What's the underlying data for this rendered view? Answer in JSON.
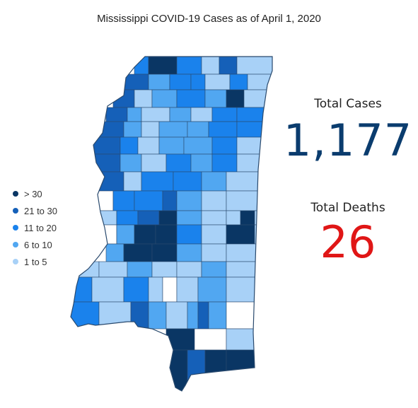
{
  "title": "Mississippi COVID-19 Cases as of April 1, 2020",
  "legend": [
    {
      "label": "> 30",
      "color": "#0a3664"
    },
    {
      "label": "21 to 30",
      "color": "#1560b8"
    },
    {
      "label": "11 to 20",
      "color": "#1a82ec"
    },
    {
      "label": "6 to 10",
      "color": "#51a7f1"
    },
    {
      "label": "1 to 5",
      "color": "#a8d1f7"
    }
  ],
  "stats": {
    "cases_label": "Total Cases",
    "cases_value": "1,177",
    "deaths_label": "Total Deaths",
    "deaths_value": "26"
  },
  "colors": {
    "none": "#ffffff",
    "border": "#2a4a6e",
    "cases_value": "#0a3c6e",
    "deaths_value": "#e01616"
  }
}
